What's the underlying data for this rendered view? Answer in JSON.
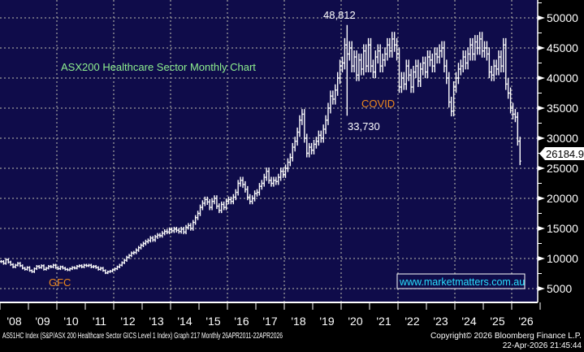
{
  "chart_data": {
    "type": "bar",
    "subtype": "ohlc-monthly",
    "title": "ASX200 Healthcare Sector Monthly Chart",
    "start": "2008-01",
    "ylim": [
      2500,
      52000
    ],
    "yticks": [
      5000,
      10000,
      15000,
      20000,
      25000,
      30000,
      35000,
      40000,
      45000,
      50000
    ],
    "xticks": [
      "'08",
      "'09",
      "'10",
      "'11",
      "'12",
      "'13",
      "'14",
      "'15",
      "'16",
      "'17",
      "'18",
      "'19",
      "'20",
      "'21",
      "'22",
      "'23",
      "'24",
      "'25",
      "'26"
    ],
    "grid": true,
    "last_price": "26184.9",
    "last_value": 26184.9,
    "closes": [
      9500,
      9200,
      9800,
      9400,
      9000,
      8600,
      8900,
      9200,
      8800,
      8400,
      8200,
      8500,
      8000,
      7800,
      8300,
      8700,
      8500,
      8800,
      8200,
      8400,
      8700,
      8600,
      8900,
      8500,
      8300,
      8600,
      8400,
      8200,
      8100,
      8300,
      8500,
      8400,
      8700,
      8800,
      8600,
      8900,
      8800,
      8900,
      8600,
      8700,
      8500,
      8200,
      8400,
      8000,
      7600,
      7800,
      7900,
      8100,
      8300,
      8600,
      8900,
      9300,
      9700,
      10200,
      10500,
      10900,
      11000,
      11400,
      11800,
      12200,
      12500,
      12800,
      13000,
      13400,
      13100,
      13600,
      13900,
      13800,
      14200,
      14500,
      14400,
      14800,
      14600,
      14900,
      14700,
      14500,
      14900,
      14400,
      15200,
      15500,
      15000,
      16000,
      16800,
      17500,
      18500,
      19200,
      19800,
      19400,
      18500,
      19500,
      20000,
      18700,
      18000,
      19000,
      18500,
      19500,
      19800,
      19500,
      20200,
      21000,
      22500,
      23000,
      22300,
      21500,
      20200,
      19500,
      20000,
      20800,
      21000,
      22000,
      22500,
      23500,
      24500,
      23000,
      22500,
      23000,
      22800,
      23500,
      24500,
      24000,
      25000,
      26000,
      26800,
      28500,
      29500,
      31000,
      33000,
      34000,
      30000,
      27500,
      28500,
      28000,
      29000,
      29500,
      30500,
      30000,
      31500,
      33000,
      35000,
      37000,
      36500,
      38000,
      40000,
      42000,
      42500,
      45500,
      44000,
      45000,
      42000,
      43500,
      40500,
      43000,
      41500,
      44500,
      42000,
      45500,
      42000,
      41000,
      43500,
      44500,
      42000,
      43000,
      44000,
      45500,
      44500,
      46500,
      45500,
      44000,
      38500,
      40000,
      39000,
      42000,
      40500,
      38500,
      41000,
      42000,
      39500,
      41500,
      42500,
      41000,
      43500,
      43000,
      42000,
      44000,
      43500,
      44500,
      45000,
      42000,
      40000,
      36000,
      34500,
      38500,
      40000,
      41500,
      42000,
      43500,
      42500,
      44000,
      45500,
      44000,
      46000,
      45000,
      46500,
      44500,
      45000,
      44000,
      41000,
      40500,
      42000,
      41500,
      43500,
      42000,
      45500,
      39000,
      37500,
      35000,
      34000,
      33500,
      29500,
      26184.9
    ],
    "extremes": [
      {
        "month_index": 146,
        "high": 48812,
        "low": 33730
      }
    ],
    "annotations": {
      "high_label": "48,812",
      "low_label": "33,730",
      "covid": "COVID",
      "gfc": "GFC"
    }
  },
  "watermark": "www.marketmatters.com.au",
  "footer": {
    "left": "AS51HC Index (S&P/ASX 200 Healthcare Sector GICS Level 1 Index) Graph 217 Monthly 26APR2011-22APR2026",
    "copyright": "Copyright© 2026 Bloomberg Finance L.P.",
    "timestamp": "22-Apr-2026 21:45:44"
  },
  "colors": {
    "background": "#0f0c4a",
    "bars": "#ffffff",
    "grid": "#9a9a9a",
    "title": "#8ff08f",
    "annotation": "#f08a1c",
    "watermark": "#29e0ff"
  }
}
